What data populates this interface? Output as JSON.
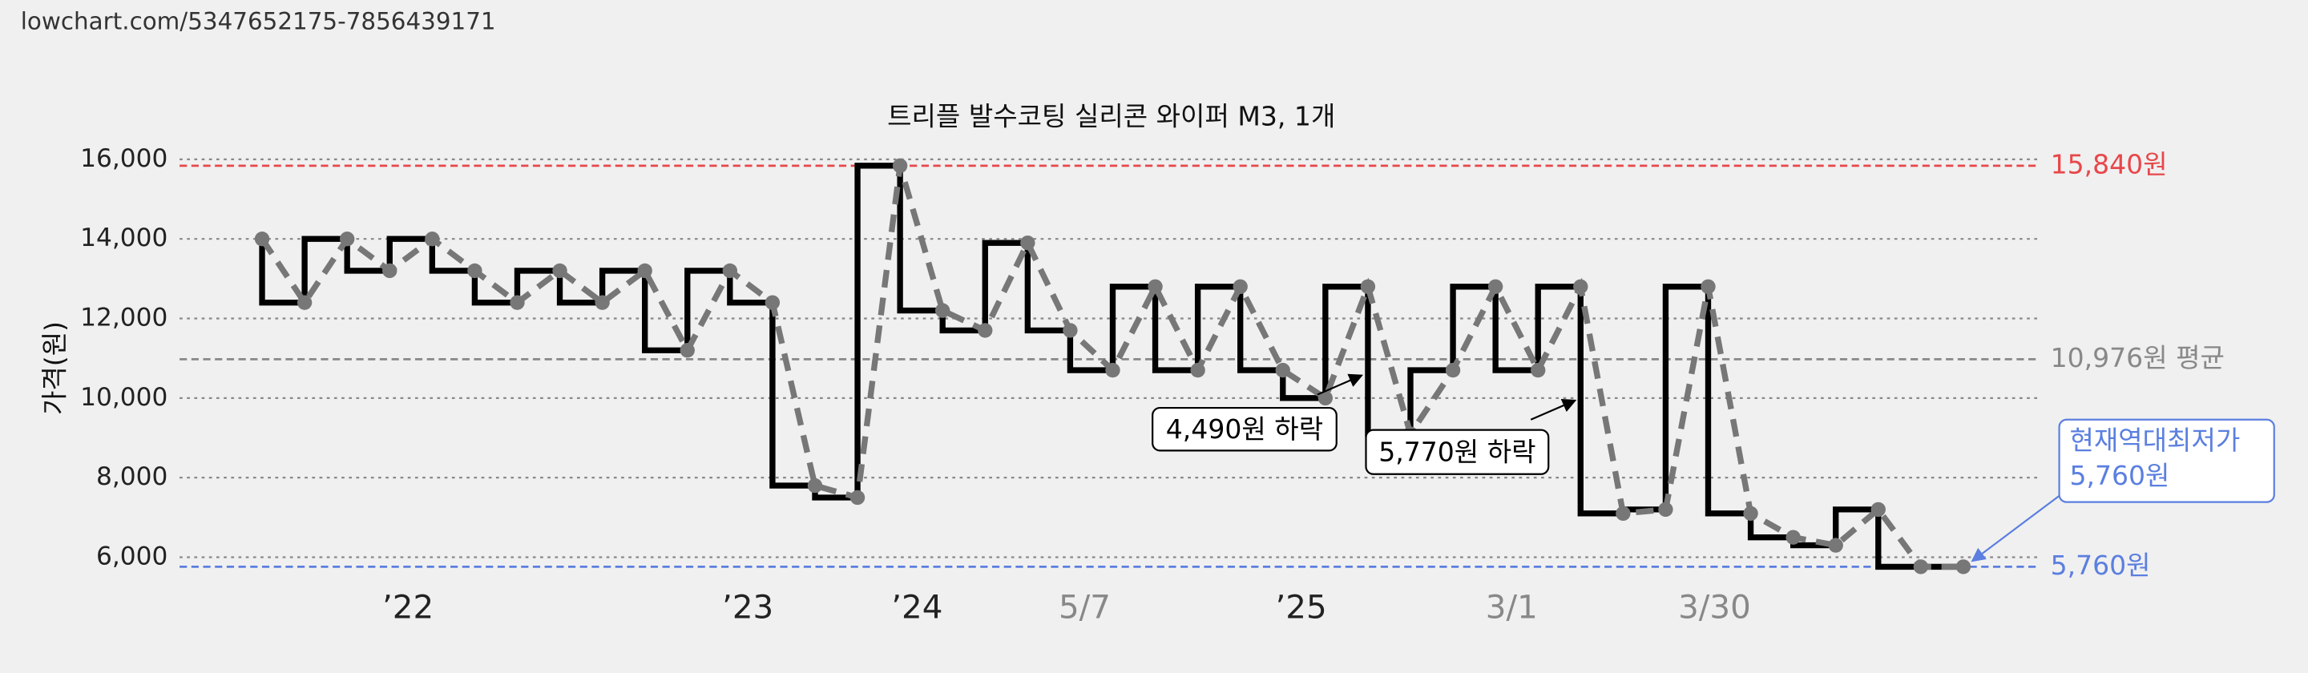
{
  "url": "lowchart.com/5347652175-7856439171",
  "chart_data": {
    "type": "line",
    "title": "트리플 발수코팅 실리콘 와이퍼 M3, 1개",
    "y_label": "가격(원)",
    "x": [
      0,
      1,
      2,
      3,
      4,
      5,
      6,
      7,
      8,
      9,
      10,
      11,
      12,
      13,
      14,
      15,
      16,
      17,
      18,
      19,
      20,
      21,
      22,
      23,
      24,
      25,
      26,
      27,
      28,
      29,
      30,
      31,
      32,
      33,
      34,
      35,
      36,
      37,
      38,
      39,
      40
    ],
    "series": [
      {
        "color": "#777777",
        "step_color": "#000000",
        "values": [
          14000,
          12400,
          14000,
          13200,
          14000,
          13200,
          12400,
          13200,
          12400,
          13200,
          11200,
          13200,
          12400,
          7800,
          7500,
          15840,
          12200,
          11700,
          13900,
          11700,
          10700,
          12800,
          10700,
          12800,
          10700,
          10000,
          12800,
          9100,
          10700,
          12800,
          10700,
          12800,
          7100,
          7200,
          12800,
          7100,
          6500,
          6300,
          7200,
          5760,
          5760
        ]
      }
    ],
    "xlim": [
      -1.94,
      41.77
    ],
    "ylim": [
      5500,
      16300
    ],
    "yticks": [
      {
        "value": 6000,
        "label": "6,000"
      },
      {
        "value": 8000,
        "label": "8,000"
      },
      {
        "value": 10000,
        "label": "10,000"
      },
      {
        "value": 12000,
        "label": "12,000"
      },
      {
        "value": 14000,
        "label": "14,000"
      },
      {
        "value": 16000,
        "label": "16,000"
      }
    ],
    "xticks": [
      {
        "value": 3.43,
        "label": "’22"
      },
      {
        "value": 11.42,
        "label": "’23"
      },
      {
        "value": 15.4,
        "label": "’24"
      },
      {
        "value": 19.34,
        "label": "5/7"
      },
      {
        "value": 24.43,
        "label": "’25"
      },
      {
        "value": 29.38,
        "label": "3/1"
      },
      {
        "value": 34.15,
        "label": "3/30"
      }
    ],
    "xtick_colors": [
      "#222222",
      "#222222",
      "#222222",
      "#888888",
      "#222222",
      "#888888",
      "#888888"
    ],
    "grid": true,
    "reference_lines": [
      {
        "value": 15840,
        "label": "15,840원",
        "color": "#e8474a"
      },
      {
        "value": 10976,
        "label": "10,976원 평균",
        "color": "#888888"
      },
      {
        "value": 5760,
        "label": "5,760원",
        "color": "#5b7fe0"
      }
    ],
    "annotations": [
      "4,490원 하락",
      "5,770원 하락"
    ],
    "lowest_note": [
      "현재역대최저가",
      "5,760원"
    ]
  }
}
